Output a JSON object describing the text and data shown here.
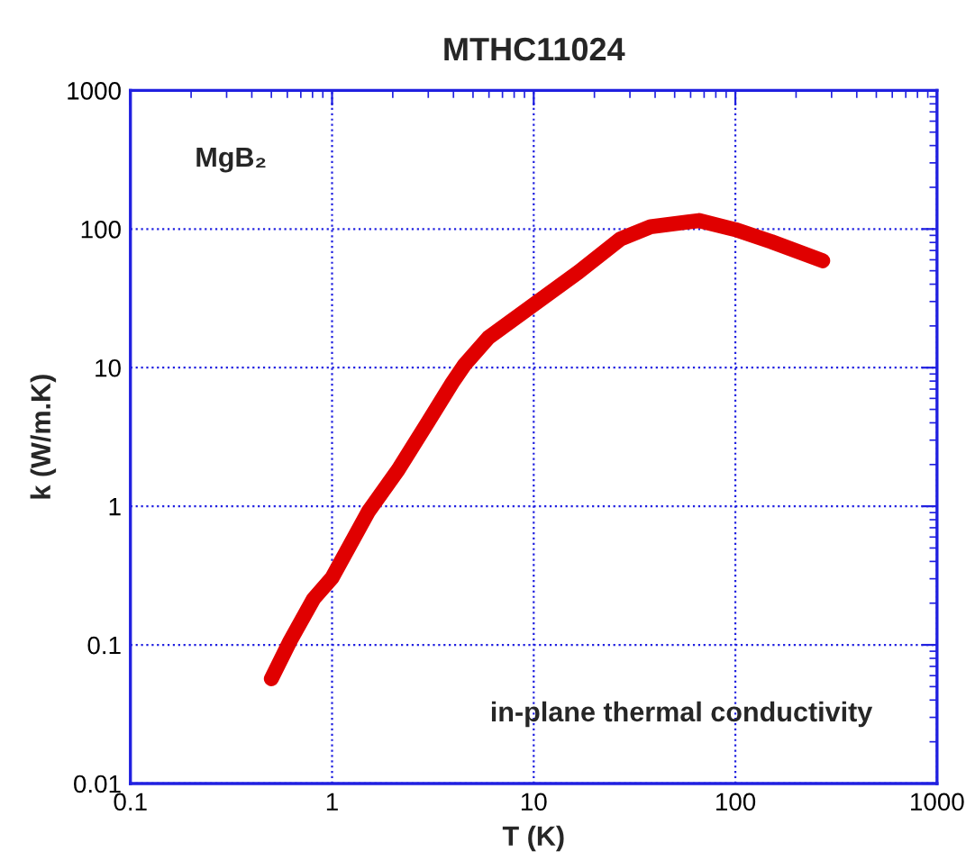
{
  "chart_data": {
    "type": "line",
    "title": "MTHC11024",
    "xlabel": "T (K)",
    "ylabel": "k (W/m.K)",
    "annotations": [
      "MgB₂",
      "in-plane thermal conductivity"
    ],
    "log": "xy",
    "grid": true,
    "marker": "none",
    "line_style": "solid",
    "xlim": [
      0.1,
      1000
    ],
    "xticks": [
      0.1,
      1,
      10,
      100,
      1000
    ],
    "ylim": [
      0.01,
      1000
    ],
    "yticks": [
      0.01,
      0.1,
      1,
      10,
      100,
      1000
    ],
    "series": [
      {
        "color": "#e00000",
        "x": [
          0.5,
          0.62,
          0.81,
          1,
          1.51,
          2.13,
          3.0,
          3.95,
          4.54,
          5.97,
          10,
          16.7,
          27,
          38,
          66,
          100,
          151,
          271
        ],
        "values": [
          0.057,
          0.107,
          0.215,
          0.305,
          0.91,
          1.84,
          4.08,
          7.8,
          10.5,
          16.5,
          28.5,
          49,
          85,
          104,
          115,
          99,
          81,
          59
        ]
      }
    ]
  }
}
